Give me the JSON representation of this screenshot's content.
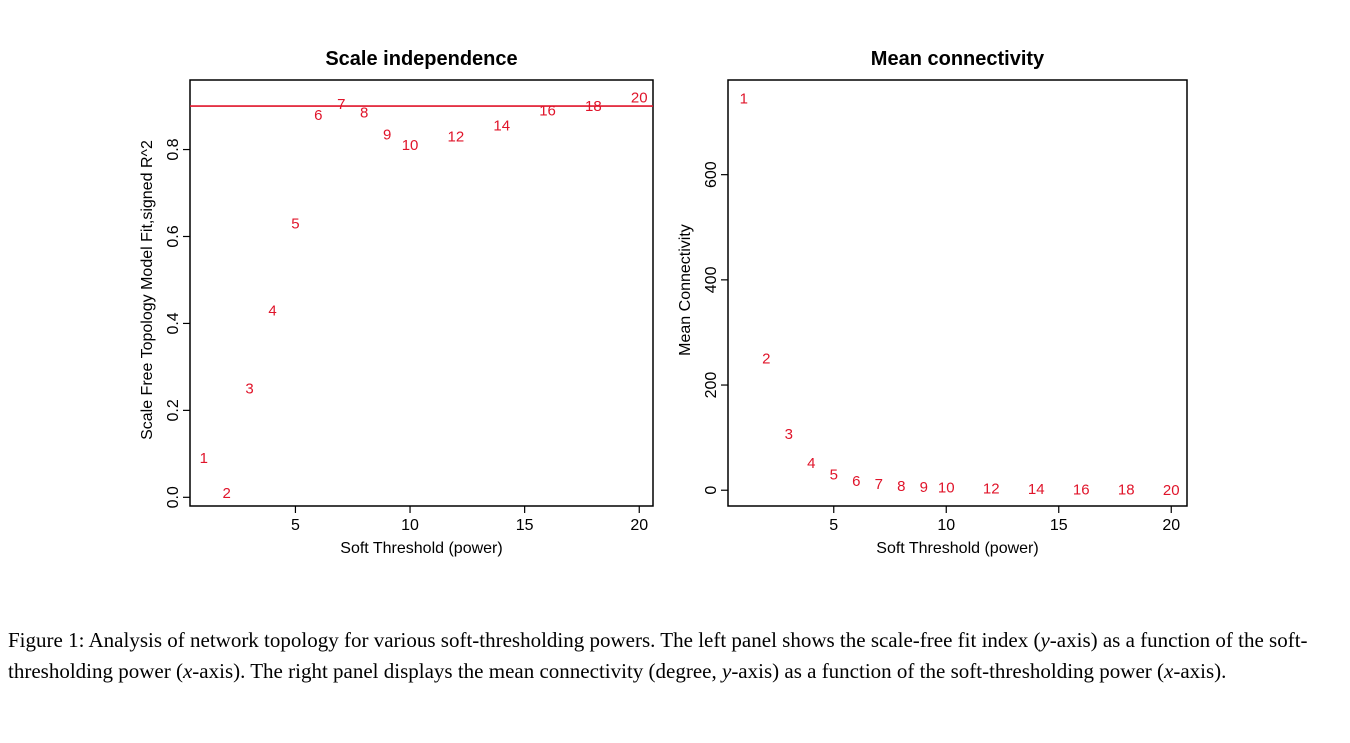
{
  "chart_data": [
    {
      "type": "scatter",
      "title": "Scale independence",
      "xlabel": "Soft Threshold (power)",
      "ylabel": "Scale Free Topology Model Fit,signed R^2",
      "xlim": [
        0.4,
        20.6
      ],
      "ylim": [
        -0.02,
        0.96
      ],
      "xticks": [
        5,
        10,
        15,
        20
      ],
      "yticks": [
        0.0,
        0.2,
        0.4,
        0.6,
        0.8
      ],
      "yticks_labels": [
        "0.0",
        "0.2",
        "0.4",
        "0.6",
        "0.8"
      ],
      "hline": 0.9,
      "hline_color": "#e0142a",
      "marker_color": "#e0142a",
      "points": [
        {
          "x": 1,
          "y": 0.09,
          "label": "1"
        },
        {
          "x": 2,
          "y": 0.01,
          "label": "2"
        },
        {
          "x": 3,
          "y": 0.25,
          "label": "3"
        },
        {
          "x": 4,
          "y": 0.43,
          "label": "4"
        },
        {
          "x": 5,
          "y": 0.63,
          "label": "5"
        },
        {
          "x": 6,
          "y": 0.88,
          "label": "6"
        },
        {
          "x": 7,
          "y": 0.905,
          "label": "7"
        },
        {
          "x": 8,
          "y": 0.885,
          "label": "8"
        },
        {
          "x": 9,
          "y": 0.835,
          "label": "9"
        },
        {
          "x": 10,
          "y": 0.81,
          "label": "10"
        },
        {
          "x": 12,
          "y": 0.83,
          "label": "12"
        },
        {
          "x": 14,
          "y": 0.855,
          "label": "14"
        },
        {
          "x": 16,
          "y": 0.89,
          "label": "16"
        },
        {
          "x": 18,
          "y": 0.9,
          "label": "18"
        },
        {
          "x": 20,
          "y": 0.92,
          "label": "20"
        }
      ]
    },
    {
      "type": "scatter",
      "title": "Mean connectivity",
      "xlabel": "Soft Threshold (power)",
      "ylabel": "Mean Connectivity",
      "xlim": [
        0.3,
        20.7
      ],
      "ylim": [
        -30,
        780
      ],
      "xticks": [
        5,
        10,
        15,
        20
      ],
      "yticks": [
        0,
        200,
        400,
        600
      ],
      "yticks_labels": [
        "0",
        "200",
        "400",
        "600"
      ],
      "marker_color": "#e0142a",
      "points": [
        {
          "x": 1,
          "y": 745,
          "label": "1"
        },
        {
          "x": 2,
          "y": 250,
          "label": "2"
        },
        {
          "x": 3,
          "y": 107,
          "label": "3"
        },
        {
          "x": 4,
          "y": 52,
          "label": "4"
        },
        {
          "x": 5,
          "y": 30,
          "label": "5"
        },
        {
          "x": 6,
          "y": 18,
          "label": "6"
        },
        {
          "x": 7,
          "y": 12,
          "label": "7"
        },
        {
          "x": 8,
          "y": 8,
          "label": "8"
        },
        {
          "x": 9,
          "y": 6,
          "label": "9"
        },
        {
          "x": 10,
          "y": 5,
          "label": "10"
        },
        {
          "x": 12,
          "y": 3,
          "label": "12"
        },
        {
          "x": 14,
          "y": 2,
          "label": "14"
        },
        {
          "x": 16,
          "y": 1,
          "label": "16"
        },
        {
          "x": 18,
          "y": 1,
          "label": "18"
        },
        {
          "x": 20,
          "y": 0,
          "label": "20"
        }
      ]
    }
  ],
  "caption": {
    "segments": [
      {
        "text": "Figure 1: Analysis of network topology for various soft-thresholding powers. The left panel shows the scale-free fit index (",
        "italic": false
      },
      {
        "text": "y",
        "italic": true
      },
      {
        "text": "-axis) as a function of the soft-thresholding power (",
        "italic": false
      },
      {
        "text": "x",
        "italic": true
      },
      {
        "text": "-axis). The right panel displays the mean connectivity (degree, ",
        "italic": false
      },
      {
        "text": "y",
        "italic": true
      },
      {
        "text": "-axis) as a function of the soft-thresholding power (",
        "italic": false
      },
      {
        "text": "x",
        "italic": true
      },
      {
        "text": "-axis).",
        "italic": false
      }
    ]
  }
}
